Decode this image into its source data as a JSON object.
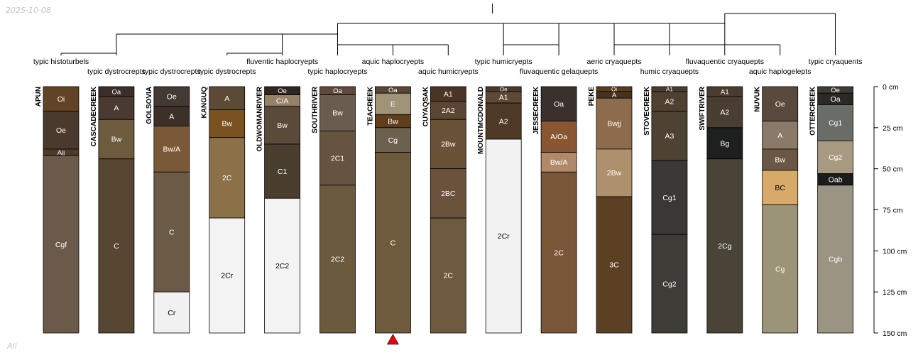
{
  "date": "2025-10-08",
  "footer_text": "All",
  "depth_axis": {
    "max_cm": 150,
    "ticks": [
      {
        "cm": 0,
        "label": "0 cm"
      },
      {
        "cm": 25,
        "label": "25 cm"
      },
      {
        "cm": 50,
        "label": "50 cm"
      },
      {
        "cm": 75,
        "label": "75 cm"
      },
      {
        "cm": 100,
        "label": "100 cm"
      },
      {
        "cm": 125,
        "label": "125 cm"
      },
      {
        "cm": 150,
        "label": "150 cm"
      }
    ]
  },
  "marker": {
    "profile_index": 6,
    "color": "#e8000b"
  },
  "dendrogram_merges": [
    {
      "a": 0,
      "b": 1
    },
    {
      "a": 3,
      "b": 4
    },
    {
      "a": 6,
      "b": 5
    },
    {
      "a": 6,
      "b": 7
    },
    {
      "a": 8,
      "b": 9
    },
    {
      "a": 12,
      "b": 13
    },
    {
      "a": 11,
      "b": 12
    },
    {
      "a": 10,
      "b": 11
    },
    {
      "a": 1,
      "b": 4
    },
    {
      "a": 4,
      "b": 5
    },
    {
      "a": 5,
      "b": 8
    },
    {
      "a": 8,
      "b": 9
    },
    {
      "a": 9,
      "b": 10
    },
    {
      "a": 10,
      "b": 11
    },
    {
      "a": 11,
      "b": 12
    },
    {
      "a": 12,
      "b": 14
    }
  ],
  "profiles": [
    {
      "name": "APUN",
      "taxon": "typic histoturbels",
      "horizons": [
        {
          "name": "Oi",
          "top": 0,
          "bottom": 15,
          "color": "#614325"
        },
        {
          "name": "Oe",
          "top": 15,
          "bottom": 38,
          "color": "#4a3a2e"
        },
        {
          "name": "Ajj",
          "top": 38,
          "bottom": 42,
          "color": "#4f3a28"
        },
        {
          "name": "Cgf",
          "top": 42,
          "bottom": 150,
          "color": "#6b5a4a"
        }
      ]
    },
    {
      "name": "CASCADECREEK",
      "taxon": "typic dystrocrepts",
      "horizons": [
        {
          "name": "Oa",
          "top": 0,
          "bottom": 6,
          "color": "#3a2e2a"
        },
        {
          "name": "A",
          "top": 6,
          "bottom": 20,
          "color": "#4a3a31"
        },
        {
          "name": "Bw",
          "top": 20,
          "bottom": 44,
          "color": "#6e5a3c"
        },
        {
          "name": "C",
          "top": 44,
          "bottom": 150,
          "color": "#564632"
        }
      ]
    },
    {
      "name": "GOLSOVIA",
      "taxon": "typic dystrocrepts",
      "horizons": [
        {
          "name": "Oe",
          "top": 0,
          "bottom": 12,
          "color": "#443a34"
        },
        {
          "name": "A",
          "top": 12,
          "bottom": 24,
          "color": "#3c3028"
        },
        {
          "name": "Bw/A",
          "top": 24,
          "bottom": 52,
          "color": "#7a5a36"
        },
        {
          "name": "C",
          "top": 52,
          "bottom": 125,
          "color": "#6a5a46"
        },
        {
          "name": "Cr",
          "top": 125,
          "bottom": 150,
          "color": "#f1f1f1"
        }
      ]
    },
    {
      "name": "KANGUQ",
      "taxon": "typic dystrocrepts",
      "horizons": [
        {
          "name": "A",
          "top": 0,
          "bottom": 14,
          "color": "#5c4a34"
        },
        {
          "name": "Bw",
          "top": 14,
          "bottom": 31,
          "color": "#7a5220"
        },
        {
          "name": "2C",
          "top": 31,
          "bottom": 80,
          "color": "#8c7048"
        },
        {
          "name": "2Cr",
          "top": 80,
          "bottom": 150,
          "color": "#f3f3f3"
        }
      ]
    },
    {
      "name": "OLDWOMANRIVER",
      "taxon": "fluventic haplocryepts",
      "horizons": [
        {
          "name": "Oe",
          "top": 0,
          "bottom": 5,
          "color": "#2d2622"
        },
        {
          "name": "C/A",
          "top": 5,
          "bottom": 12,
          "color": "#958068"
        },
        {
          "name": "Bw",
          "top": 12,
          "bottom": 35,
          "color": "#5a4a3a"
        },
        {
          "name": "C1",
          "top": 35,
          "bottom": 68,
          "color": "#4a3e2e"
        },
        {
          "name": "2C2",
          "top": 68,
          "bottom": 150,
          "color": "#f3f3f3"
        }
      ]
    },
    {
      "name": "SOUTHRIVER",
      "taxon": "typic haplocryepts",
      "horizons": [
        {
          "name": "Oa",
          "top": 0,
          "bottom": 5,
          "color": "#5e4a3c"
        },
        {
          "name": "Bw",
          "top": 5,
          "bottom": 27,
          "color": "#6a5c4e"
        },
        {
          "name": "2C1",
          "top": 27,
          "bottom": 60,
          "color": "#665440"
        },
        {
          "name": "2C2",
          "top": 60,
          "bottom": 150,
          "color": "#6c5a3e"
        }
      ]
    },
    {
      "name": "TEACREEK",
      "taxon": "aquic haplocryepts",
      "horizons": [
        {
          "name": "Oa",
          "top": 0,
          "bottom": 4,
          "color": "#5a4634"
        },
        {
          "name": "E",
          "top": 4,
          "bottom": 17,
          "color": "#a09478"
        },
        {
          "name": "Bw",
          "top": 17,
          "bottom": 25,
          "color": "#5e3e1c"
        },
        {
          "name": "Cg",
          "top": 25,
          "bottom": 40,
          "color": "#6c604e"
        },
        {
          "name": "C",
          "top": 40,
          "bottom": 150,
          "color": "#6e5a3c"
        }
      ]
    },
    {
      "name": "CUYAQSAK",
      "taxon": "aquic humicryepts",
      "horizons": [
        {
          "name": "A1",
          "top": 0,
          "bottom": 9,
          "color": "#4a3426"
        },
        {
          "name": "2A2",
          "top": 9,
          "bottom": 20,
          "color": "#5a4632"
        },
        {
          "name": "2Bw",
          "top": 20,
          "bottom": 50,
          "color": "#6a5238"
        },
        {
          "name": "2BC",
          "top": 50,
          "bottom": 80,
          "color": "#6a523c"
        },
        {
          "name": "2C",
          "top": 80,
          "bottom": 150,
          "color": "#6e5a3e"
        }
      ]
    },
    {
      "name": "MOUNTMCDONALD",
      "taxon": "typic humicryepts",
      "horizons": [
        {
          "name": "Oe",
          "top": 0,
          "bottom": 3,
          "color": "#4a3a2e"
        },
        {
          "name": "A1",
          "top": 3,
          "bottom": 10,
          "color": "#5e4a34"
        },
        {
          "name": "A2",
          "top": 10,
          "bottom": 32,
          "color": "#4e3a26"
        },
        {
          "name": "2Cr",
          "top": 32,
          "bottom": 150,
          "color": "#f2f2f2"
        }
      ]
    },
    {
      "name": "JESSECREEK",
      "taxon": "fluvaquentic gelaquepts",
      "horizons": [
        {
          "name": "Oa",
          "top": 0,
          "bottom": 21,
          "color": "#3a302c"
        },
        {
          "name": "A/Oa",
          "top": 21,
          "bottom": 40,
          "color": "#8a5632"
        },
        {
          "name": "Bw/A",
          "top": 40,
          "bottom": 52,
          "color": "#b08a68"
        },
        {
          "name": "2C",
          "top": 52,
          "bottom": 150,
          "color": "#7a5638"
        }
      ]
    },
    {
      "name": "PEKE",
      "taxon": "aeric cryaquepts",
      "horizons": [
        {
          "name": "Oi",
          "top": 0,
          "bottom": 3,
          "color": "#5a3c1e"
        },
        {
          "name": "A",
          "top": 3,
          "bottom": 7,
          "color": "#4a3220"
        },
        {
          "name": "Bwjj",
          "top": 7,
          "bottom": 38,
          "color": "#8c6c4c"
        },
        {
          "name": "2Bw",
          "top": 38,
          "bottom": 67,
          "color": "#ae906c"
        },
        {
          "name": "3C",
          "top": 67,
          "bottom": 150,
          "color": "#5c4024"
        }
      ]
    },
    {
      "name": "STOVECREEK",
      "taxon": "humic cryaquepts",
      "horizons": [
        {
          "name": "A1",
          "top": 0,
          "bottom": 3,
          "color": "#4a3c30"
        },
        {
          "name": "A2",
          "top": 3,
          "bottom": 15,
          "color": "#504030"
        },
        {
          "name": "A3",
          "top": 15,
          "bottom": 45,
          "color": "#4e4232"
        },
        {
          "name": "Cg1",
          "top": 45,
          "bottom": 90,
          "color": "#3a3834"
        },
        {
          "name": "Cg2",
          "top": 90,
          "bottom": 150,
          "color": "#3e3c36"
        }
      ]
    },
    {
      "name": "SWIFTRIVER",
      "taxon": "fluvaquentic cryaquepts",
      "horizons": [
        {
          "name": "A1",
          "top": 0,
          "bottom": 6,
          "color": "#4a3c30"
        },
        {
          "name": "A2",
          "top": 6,
          "bottom": 25,
          "color": "#4a3e32"
        },
        {
          "name": "Bg",
          "top": 25,
          "bottom": 44,
          "color": "#1e2020"
        },
        {
          "name": "2Cg",
          "top": 44,
          "bottom": 150,
          "color": "#4a4438"
        }
      ]
    },
    {
      "name": "NUVUK",
      "taxon": "aquic haplogelepts",
      "horizons": [
        {
          "name": "Oe",
          "top": 0,
          "bottom": 21,
          "color": "#5a4a3e"
        },
        {
          "name": "A",
          "top": 21,
          "bottom": 38,
          "color": "#8a7a6a"
        },
        {
          "name": "Bw",
          "top": 38,
          "bottom": 51,
          "color": "#6a5844"
        },
        {
          "name": "BC",
          "top": 51,
          "bottom": 72,
          "color": "#d8aa6a"
        },
        {
          "name": "Cg",
          "top": 72,
          "bottom": 150,
          "color": "#9c9478"
        }
      ]
    },
    {
      "name": "OTTERCREEK",
      "taxon": "typic cryaquents",
      "horizons": [
        {
          "name": "Oe",
          "top": 0,
          "bottom": 4,
          "color": "#3e3a36"
        },
        {
          "name": "Oa",
          "top": 4,
          "bottom": 11,
          "color": "#2c2826"
        },
        {
          "name": "Cg1",
          "top": 11,
          "bottom": 33,
          "color": "#6a6c68"
        },
        {
          "name": "Cg2",
          "top": 33,
          "bottom": 53,
          "color": "#a89a80"
        },
        {
          "name": "Oab",
          "top": 53,
          "bottom": 60,
          "color": "#1c1c1c"
        },
        {
          "name": "Cgb",
          "top": 60,
          "bottom": 150,
          "color": "#9a9482"
        }
      ]
    }
  ]
}
